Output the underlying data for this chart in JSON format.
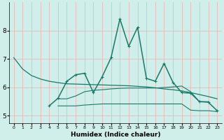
{
  "title": "",
  "xlabel": "Humidex (Indice chaleur)",
  "ylabel": "",
  "bg_color": "#d0eeea",
  "grid_color": "#e8b0b0",
  "line_color": "#1a7a6a",
  "xlim": [
    -0.5,
    23.5
  ],
  "ylim": [
    4.75,
    9.0
  ],
  "xticks": [
    0,
    1,
    2,
    3,
    4,
    5,
    6,
    7,
    8,
    9,
    10,
    11,
    12,
    13,
    14,
    15,
    16,
    17,
    18,
    19,
    20,
    21,
    22,
    23
  ],
  "yticks": [
    5,
    6,
    7,
    8
  ],
  "line1": {
    "x": [
      0,
      1,
      2,
      3,
      4,
      5,
      6,
      7,
      8,
      9,
      10,
      11,
      12,
      13,
      14,
      15,
      16,
      17,
      18,
      19,
      20,
      21,
      22,
      23
    ],
    "y": [
      7.05,
      6.65,
      6.42,
      6.3,
      6.22,
      6.17,
      6.13,
      6.12,
      6.11,
      6.1,
      6.09,
      6.08,
      6.07,
      6.06,
      6.04,
      6.02,
      5.99,
      5.95,
      5.92,
      5.88,
      5.82,
      5.75,
      5.68,
      5.6
    ]
  },
  "line2": {
    "x": [
      4,
      5,
      6,
      7,
      8,
      9,
      10,
      11,
      12,
      13,
      14,
      15,
      16,
      17,
      18,
      19,
      20,
      21,
      22,
      23
    ],
    "y": [
      5.35,
      5.62,
      6.22,
      6.45,
      6.5,
      5.82,
      6.38,
      7.05,
      8.42,
      7.45,
      8.12,
      6.32,
      6.22,
      6.85,
      6.18,
      5.82,
      5.8,
      5.5,
      5.48,
      5.18
    ]
  },
  "line3": {
    "x": [
      5,
      6,
      7,
      8,
      9,
      10,
      11,
      12,
      13,
      14,
      15,
      16,
      17,
      18,
      19,
      20,
      21,
      22
    ],
    "y": [
      5.6,
      5.6,
      5.7,
      5.85,
      5.9,
      5.92,
      5.95,
      5.97,
      5.98,
      5.98,
      5.98,
      5.98,
      6.0,
      6.02,
      6.05,
      5.85,
      5.5,
      5.5
    ]
  },
  "line4": {
    "x": [
      5,
      6,
      7,
      8,
      9,
      10,
      11,
      12,
      13,
      14,
      15,
      16,
      17,
      18,
      19,
      20,
      21,
      22,
      23
    ],
    "y": [
      5.35,
      5.35,
      5.35,
      5.38,
      5.4,
      5.42,
      5.42,
      5.42,
      5.42,
      5.42,
      5.42,
      5.42,
      5.42,
      5.42,
      5.42,
      5.2,
      5.18,
      5.18,
      5.15
    ]
  }
}
